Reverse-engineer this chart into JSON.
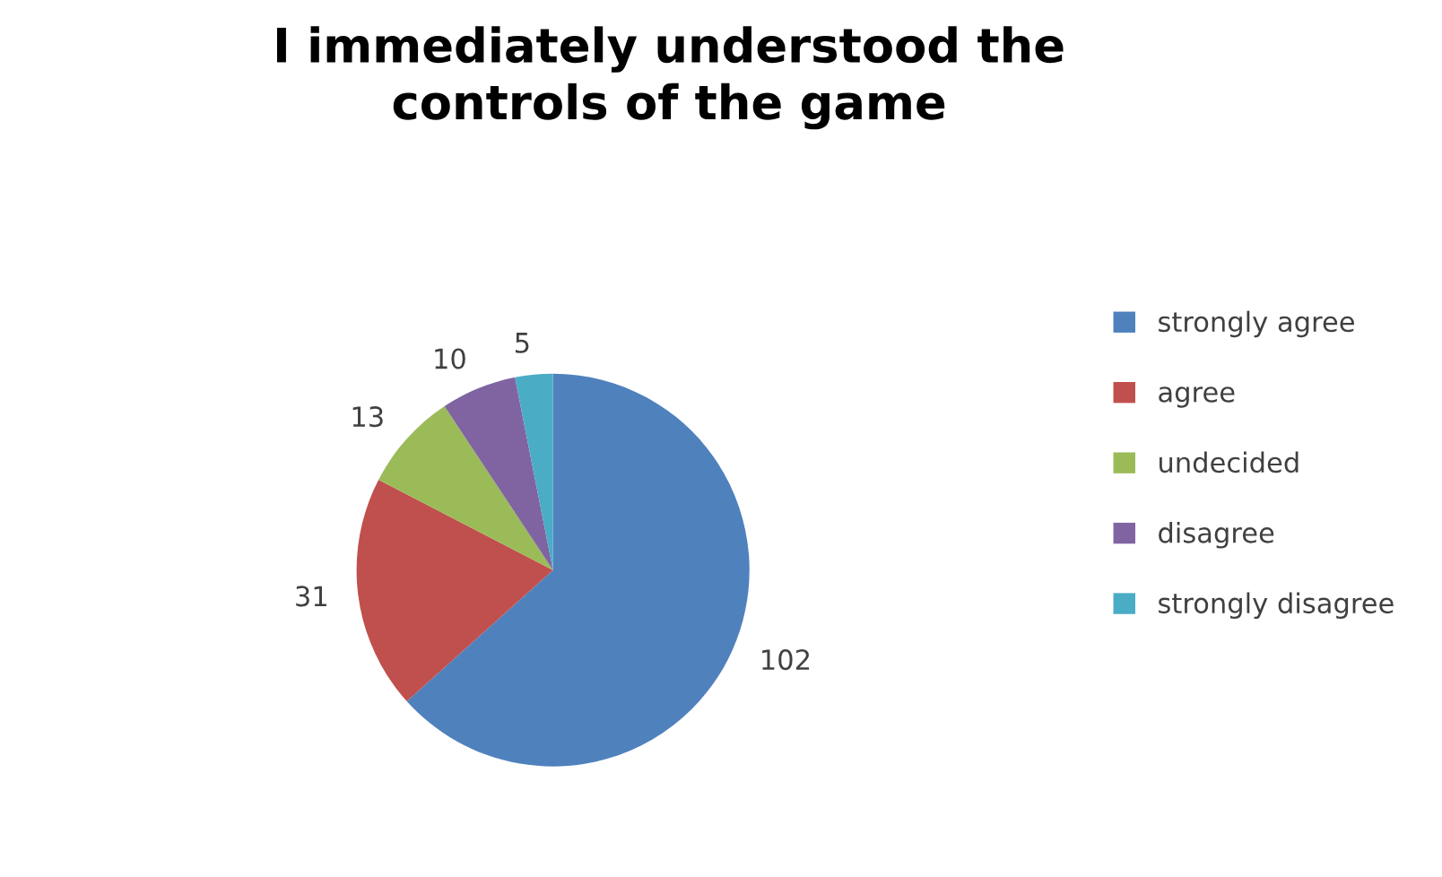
{
  "chart_data": {
    "type": "pie",
    "title": "I immediately understood the\ncontrols of the game",
    "categories": [
      "strongly agree",
      "agree",
      "undecided",
      "disagree",
      "strongly disagree"
    ],
    "values": [
      102,
      31,
      13,
      10,
      5
    ],
    "colors": [
      "#4f81bd",
      "#c0504d",
      "#9bbb59",
      "#8064a2",
      "#4bacc6"
    ],
    "data_labels": true,
    "legend": "right"
  }
}
